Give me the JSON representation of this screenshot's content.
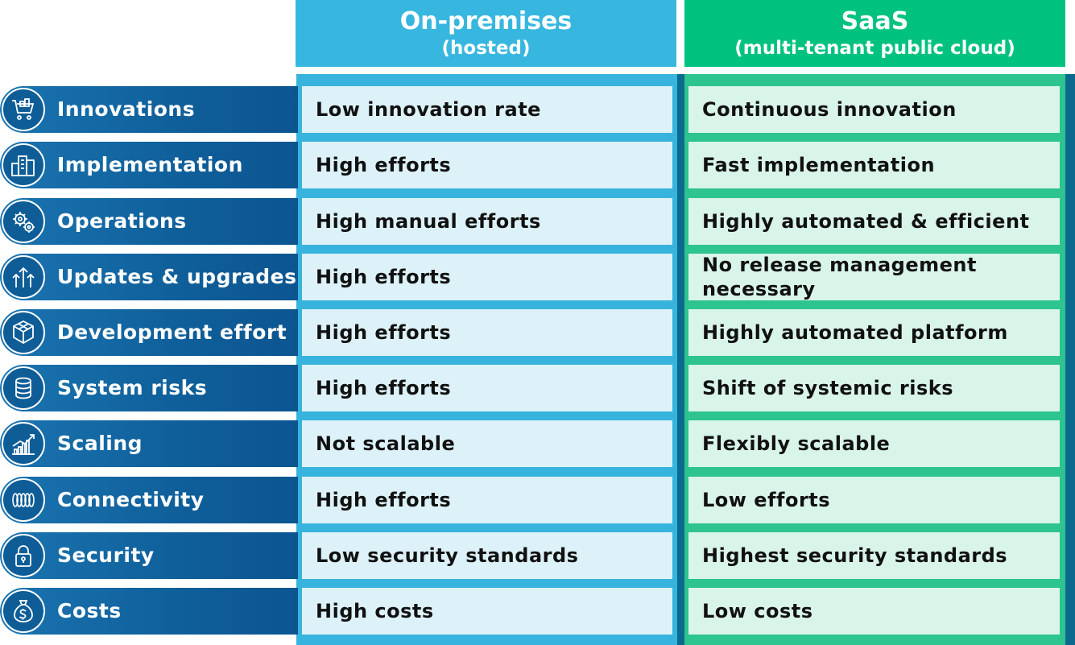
{
  "columns": {
    "onprem": {
      "title": "On-premises",
      "subtitle": "(hosted)"
    },
    "saas": {
      "title": "SaaS",
      "subtitle": "(multi-tenant public cloud)"
    }
  },
  "colors": {
    "onprem_header": "#37b7e0",
    "saas_header": "#00c27f",
    "label_bar": "#0f5f9a",
    "onprem_cell": "#dcf1f8",
    "saas_cell": "#d9f4e9"
  },
  "rows": [
    {
      "label": "Innovations",
      "icon": "cart-icon",
      "onprem": "Low innovation rate",
      "saas": "Continuous innovation"
    },
    {
      "label": "Implementation",
      "icon": "buildings-icon",
      "onprem": "High efforts",
      "saas": "Fast implementation"
    },
    {
      "label": "Operations",
      "icon": "gears-icon",
      "onprem": "High manual efforts",
      "saas": "Highly automated & efficient"
    },
    {
      "label": "Updates & upgrades",
      "icon": "arrows-up-icon",
      "onprem": "High efforts",
      "saas": "No release management necessary"
    },
    {
      "label": "Development effort",
      "icon": "cube-icon",
      "onprem": "High efforts",
      "saas": "Highly automated platform"
    },
    {
      "label": "System risks",
      "icon": "database-icon",
      "onprem": "High efforts",
      "saas": "Shift of systemic risks"
    },
    {
      "label": "Scaling",
      "icon": "growth-chart-icon",
      "onprem": "Not scalable",
      "saas": "Flexibly scalable"
    },
    {
      "label": "Connectivity",
      "icon": "coil-icon",
      "onprem": "High efforts",
      "saas": "Low efforts"
    },
    {
      "label": "Security",
      "icon": "lock-icon",
      "onprem": "Low security standards",
      "saas": "Highest security standards"
    },
    {
      "label": "Costs",
      "icon": "money-bag-icon",
      "onprem": "High costs",
      "saas": "Low costs"
    }
  ]
}
